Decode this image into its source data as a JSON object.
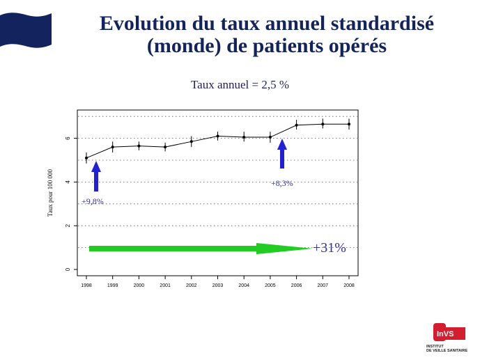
{
  "slide": {
    "title_line1": "Evolution du taux annuel standardisé",
    "title_line2": "(monde) de patients opérés",
    "subtitle": "Taux annuel = 2,5 %"
  },
  "logo": {
    "text": "InVS",
    "caption_line1": "INSTITUT",
    "caption_line2": "DE VEILLE SANITAIRE"
  },
  "colors": {
    "title": "#13235e",
    "flag": "#13235e",
    "arrow_blue": "#2020d8",
    "arrow_green": "#22cc22",
    "annotation_text": "#3030a0"
  },
  "chart_data": {
    "type": "line",
    "title": "",
    "xlabel": "",
    "ylabel": "Taux pour 100 000",
    "categories": [
      "1998",
      "1999",
      "2000",
      "2001",
      "2002",
      "2003",
      "2004",
      "2005",
      "2006",
      "2007",
      "2008"
    ],
    "values": [
      5.1,
      5.6,
      5.65,
      5.6,
      5.85,
      6.1,
      6.05,
      6.05,
      6.6,
      6.65,
      6.65
    ],
    "error_low": [
      4.85,
      5.35,
      5.45,
      5.4,
      5.6,
      5.9,
      5.85,
      5.8,
      6.4,
      6.45,
      6.4
    ],
    "error_high": [
      5.35,
      5.85,
      5.85,
      5.8,
      6.1,
      6.3,
      6.3,
      6.3,
      6.85,
      6.9,
      6.9
    ],
    "ylim": [
      -0.4,
      7.3
    ],
    "yticks": [
      "0",
      "2",
      "4",
      "6"
    ],
    "grid": "dotted-horizontal",
    "annotations": [
      {
        "label": "+9,8%",
        "arrow": "blue-up",
        "near": "1998"
      },
      {
        "label": "+8,3%",
        "arrow": "blue-up",
        "near": "2005"
      },
      {
        "label": "+31%",
        "arrow": "green-right",
        "near": "1998-2006"
      }
    ]
  }
}
